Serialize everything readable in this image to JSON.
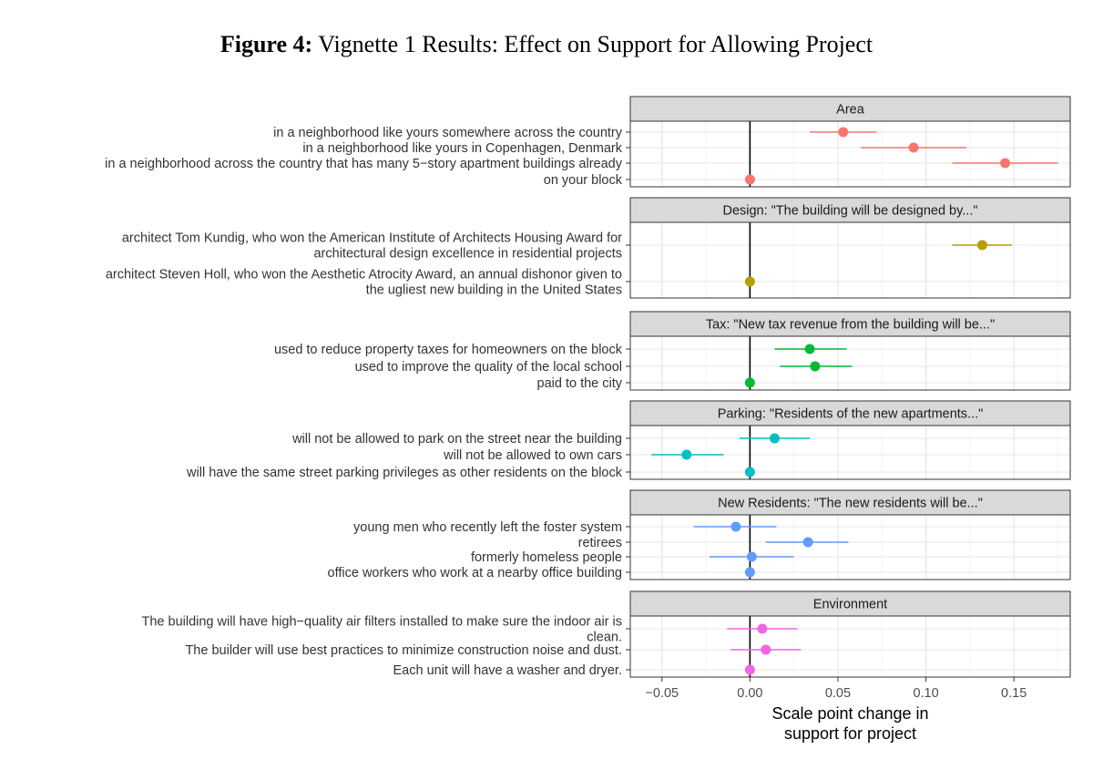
{
  "figure": {
    "label": "Figure 4:",
    "title": "Vignette 1 Results: Effect on Support for Allowing Project"
  },
  "chart_data": {
    "type": "scatter",
    "subtype": "coefficient-plot-with-confidence-intervals",
    "xlabel": [
      "Scale point change in",
      "support for project"
    ],
    "xlim": [
      -0.068,
      0.182
    ],
    "xticks": [
      -0.05,
      0.0,
      0.05,
      0.1,
      0.15
    ],
    "xtick_labels": [
      "−0.05",
      "0.00",
      "0.05",
      "0.10",
      "0.15"
    ],
    "grid": true,
    "reference_line": 0,
    "panels": [
      {
        "title": "Area",
        "color": "#F8766D",
        "items": [
          {
            "label": [
              "in a neighborhood like yours somewhere across the country"
            ],
            "estimate": 0.053,
            "ci": [
              0.034,
              0.072
            ]
          },
          {
            "label": [
              "in a neighborhood like yours in Copenhagen, Denmark"
            ],
            "estimate": 0.093,
            "ci": [
              0.063,
              0.123
            ]
          },
          {
            "label": [
              "in a neighborhood across the country that has many 5−story apartment buildings already"
            ],
            "estimate": 0.145,
            "ci": [
              0.115,
              0.175
            ]
          },
          {
            "label": [
              "on your block"
            ],
            "estimate": 0.0,
            "ci": null
          }
        ]
      },
      {
        "title": "Design: \"The building will be designed by...\"",
        "color": "#B79F00",
        "items": [
          {
            "label": [
              "architect Tom Kundig, who won the American Institute of Architects Housing Award for",
              "architectural design excellence in residential projects"
            ],
            "estimate": 0.132,
            "ci": [
              0.115,
              0.149
            ]
          },
          {
            "label": [
              "architect Steven Holl, who won the Aesthetic Atrocity Award, an annual dishonor given to",
              "the ugliest new building in the United States"
            ],
            "estimate": 0.0,
            "ci": null
          }
        ]
      },
      {
        "title": "Tax: \"New tax revenue from the building will be...\"",
        "color": "#00BA38",
        "items": [
          {
            "label": [
              "used to reduce property taxes for homeowners on the block"
            ],
            "estimate": 0.034,
            "ci": [
              0.014,
              0.055
            ]
          },
          {
            "label": [
              "used to improve the quality of the local school"
            ],
            "estimate": 0.037,
            "ci": [
              0.017,
              0.058
            ]
          },
          {
            "label": [
              "paid to the city"
            ],
            "estimate": 0.0,
            "ci": null
          }
        ]
      },
      {
        "title": "Parking: \"Residents of the new apartments...\"",
        "color": "#00BFC4",
        "items": [
          {
            "label": [
              "will not be allowed to park on the street near the building"
            ],
            "estimate": 0.014,
            "ci": [
              -0.006,
              0.034
            ]
          },
          {
            "label": [
              "will not be allowed to own cars"
            ],
            "estimate": -0.036,
            "ci": [
              -0.056,
              -0.015
            ]
          },
          {
            "label": [
              "will have the same street parking privileges as other residents on the block"
            ],
            "estimate": 0.0,
            "ci": null
          }
        ]
      },
      {
        "title": "New Residents: \"The new residents will be...\"",
        "color": "#619CFF",
        "items": [
          {
            "label": [
              "young men who recently left the foster system"
            ],
            "estimate": -0.008,
            "ci": [
              -0.032,
              0.015
            ]
          },
          {
            "label": [
              "retirees"
            ],
            "estimate": 0.033,
            "ci": [
              0.009,
              0.056
            ]
          },
          {
            "label": [
              "formerly homeless people"
            ],
            "estimate": 0.001,
            "ci": [
              -0.023,
              0.025
            ]
          },
          {
            "label": [
              "office workers who work at a nearby office building"
            ],
            "estimate": 0.0,
            "ci": null
          }
        ]
      },
      {
        "title": "Environment",
        "color": "#F564E3",
        "items": [
          {
            "label": [
              "The building will have high−quality air filters installed to make sure the indoor air is",
              "clean."
            ],
            "estimate": 0.007,
            "ci": [
              -0.013,
              0.027
            ]
          },
          {
            "label": [
              "The builder will use best practices to minimize construction noise and dust."
            ],
            "estimate": 0.009,
            "ci": [
              -0.011,
              0.029
            ]
          },
          {
            "label": [
              "Each unit will have a washer and dryer."
            ],
            "estimate": 0.0,
            "ci": null
          }
        ]
      }
    ]
  }
}
